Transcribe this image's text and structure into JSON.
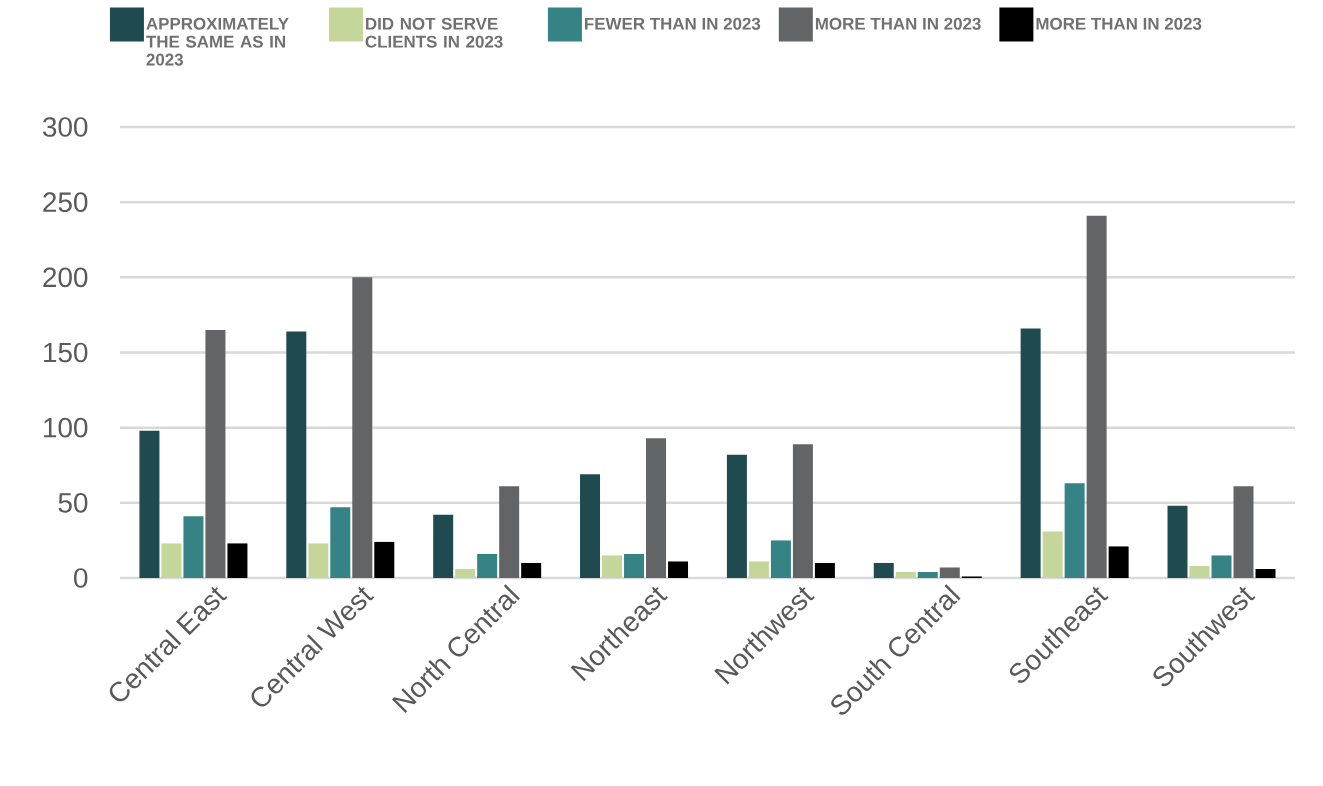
{
  "chart_data": {
    "type": "bar",
    "categories": [
      "Central East",
      "Central West",
      "North Central",
      "Northeast",
      "Northwest",
      "South Central",
      "Southeast",
      "Southwest"
    ],
    "series": [
      {
        "name": "APPROXIMATELY THE SAME AS IN 2023",
        "color": "#1f4a50",
        "values": [
          98,
          164,
          42,
          69,
          82,
          10,
          166,
          48
        ]
      },
      {
        "name": "DID NOT SERVE CLIENTS IN 2023",
        "color": "#c5d69b",
        "values": [
          23,
          23,
          6,
          15,
          11,
          4,
          31,
          8
        ]
      },
      {
        "name": "FEWER THAN IN 2023",
        "color": "#358385",
        "values": [
          41,
          47,
          16,
          16,
          25,
          4,
          63,
          15
        ]
      },
      {
        "name": "MORE THAN IN 2023",
        "color": "#636466",
        "values": [
          165,
          200,
          61,
          93,
          89,
          7,
          241,
          61
        ]
      },
      {
        "name": "MORE THAN IN 2023",
        "color": "#000000",
        "values": [
          23,
          24,
          10,
          11,
          10,
          1,
          21,
          6
        ]
      }
    ],
    "ylim": [
      0,
      300
    ],
    "yticks": [
      0,
      50,
      100,
      150,
      200,
      250,
      300
    ],
    "grid": "y",
    "legend": "top"
  }
}
